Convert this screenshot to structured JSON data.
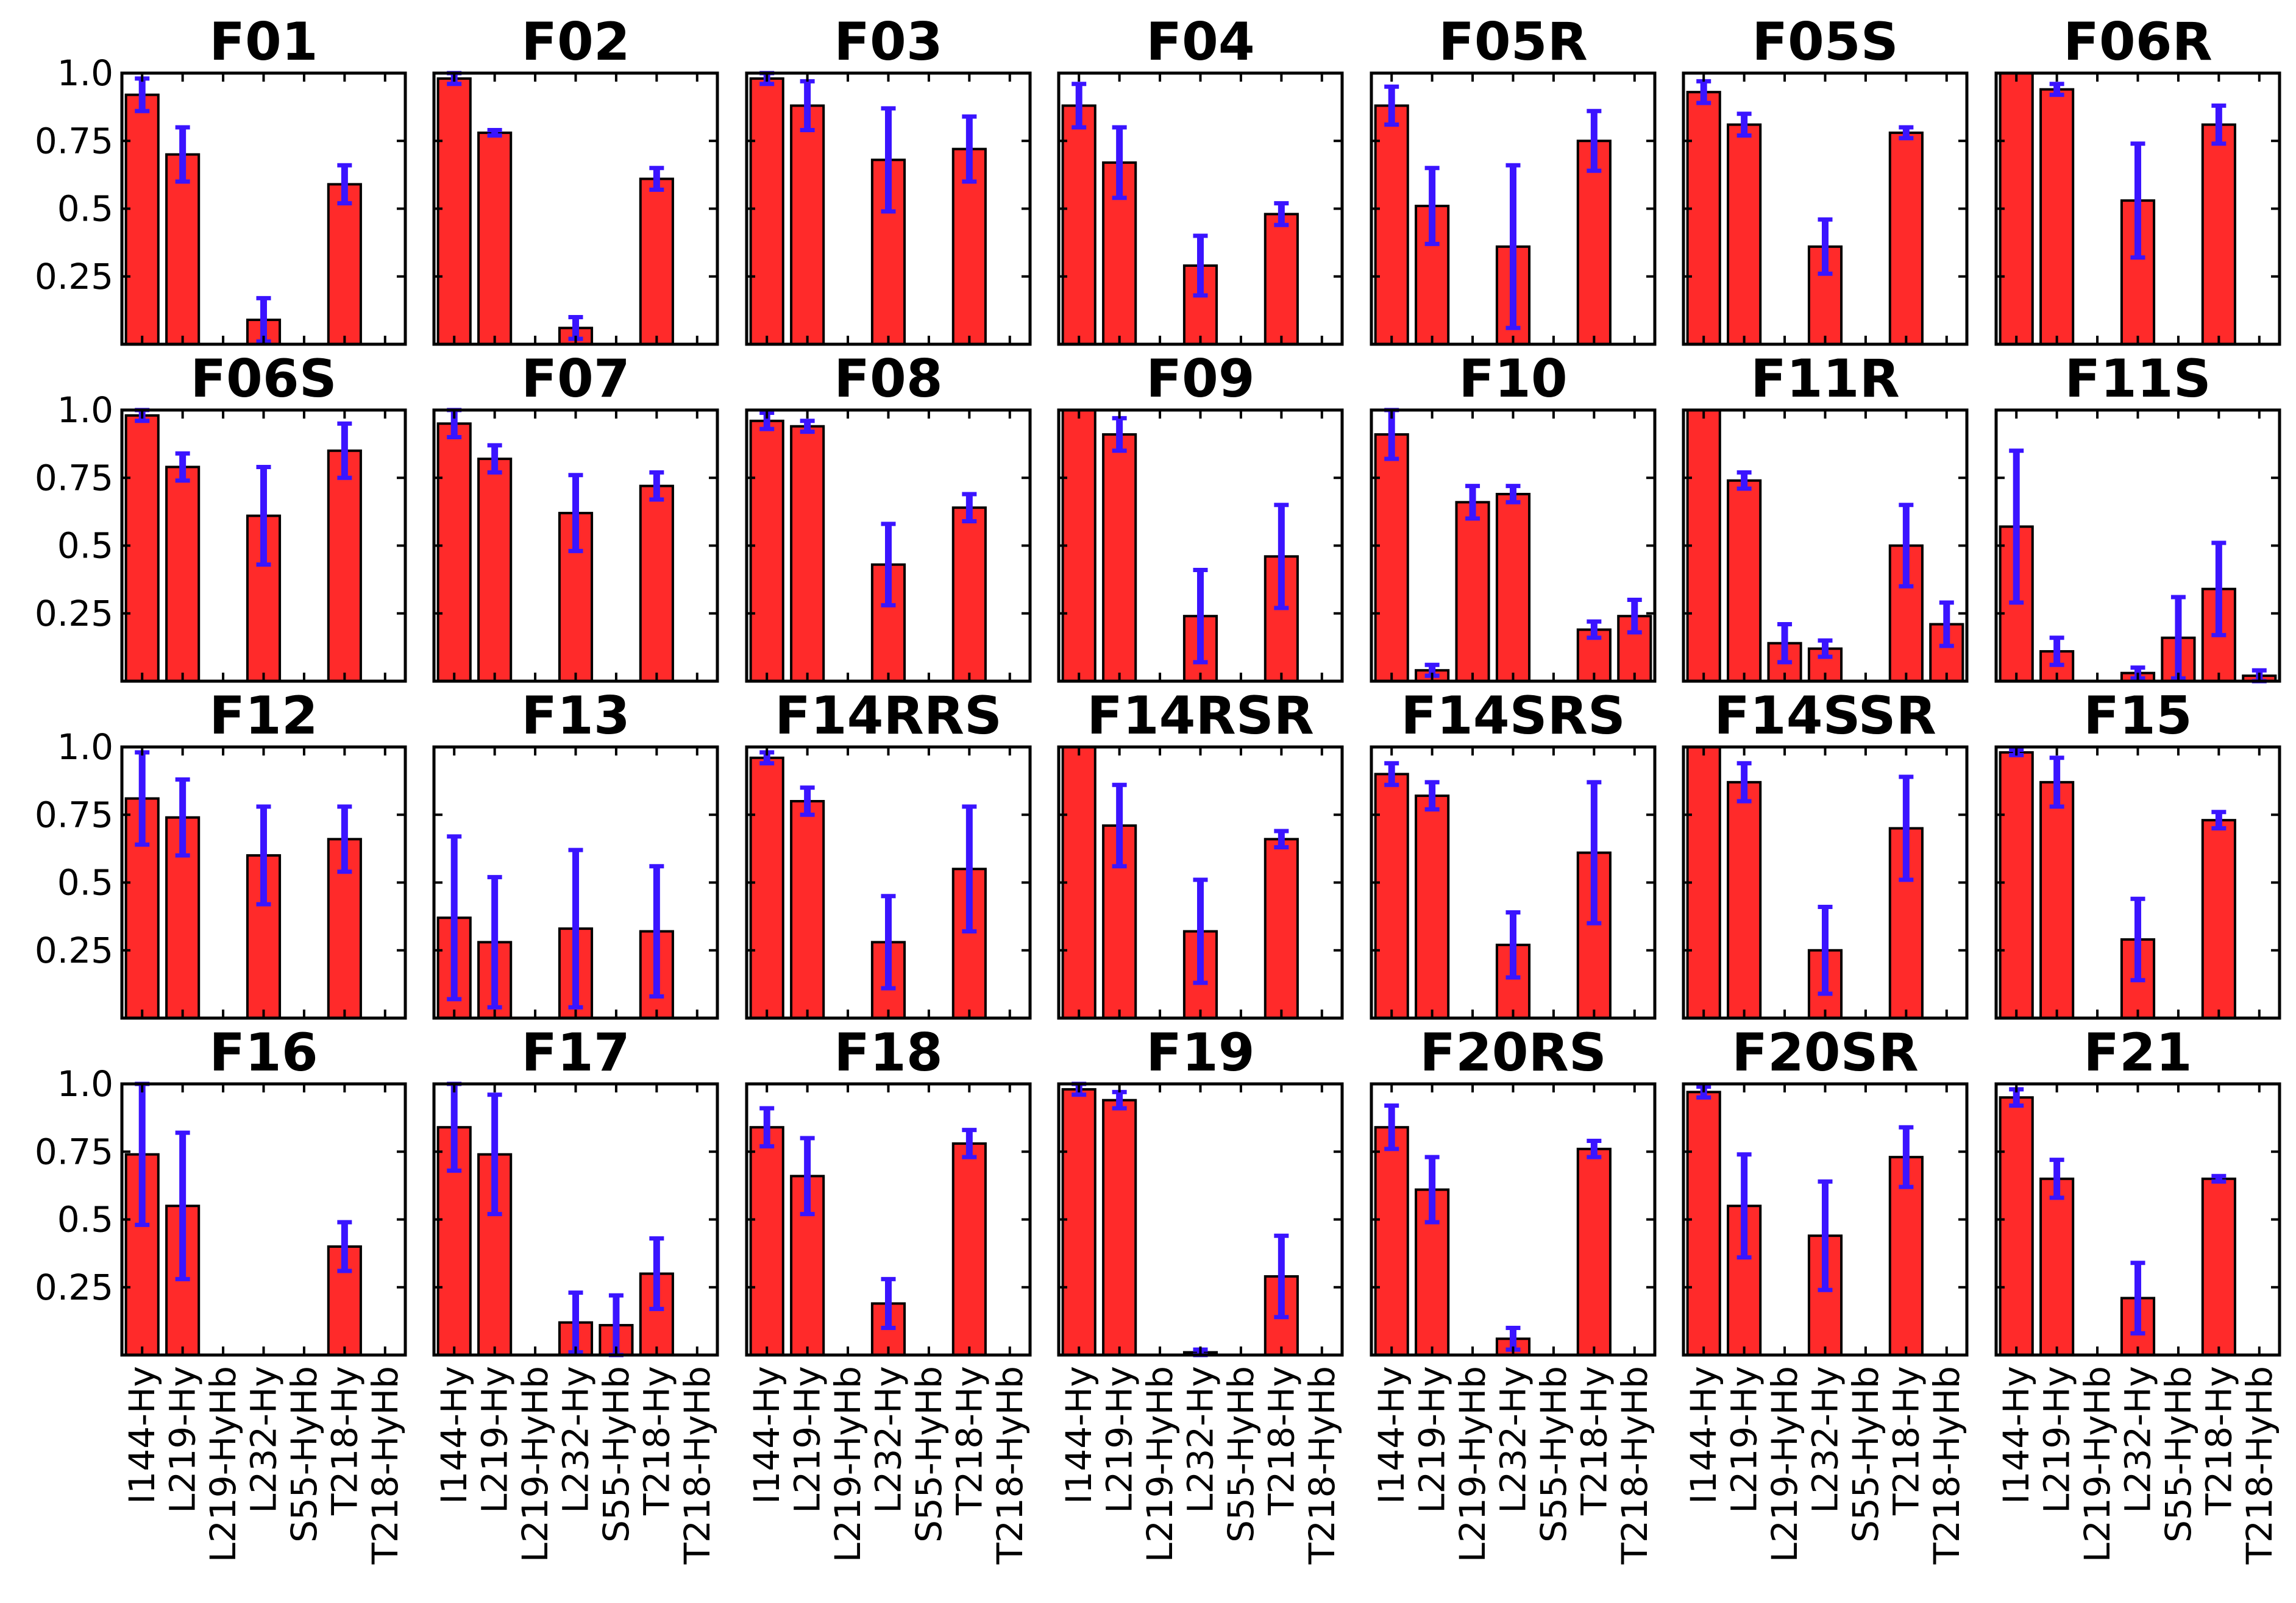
{
  "chart_data": {
    "type": "bar",
    "title": "",
    "xlabel": "",
    "ylabel": "",
    "ylim": [
      0,
      1.0
    ],
    "yticks": [
      0.25,
      0.5,
      0.75,
      1.0
    ],
    "ytick_labels": [
      "0.25",
      "0.5",
      "0.75",
      "1.0"
    ],
    "categories": [
      "I144-Hy",
      "L219-Hy",
      "L219-HyHb",
      "L232-Hy",
      "S55-HyHb",
      "T218-Hy",
      "T218-HyHb"
    ],
    "bar_color": "#ff2a2a",
    "error_color": "#3a14ff",
    "panels": [
      {
        "title": "F01",
        "values": [
          0.92,
          0.7,
          0,
          0.09,
          0,
          0.59,
          0
        ],
        "errors": [
          0.06,
          0.1,
          0,
          0.08,
          0,
          0.07,
          0
        ]
      },
      {
        "title": "F02",
        "values": [
          0.98,
          0.78,
          0,
          0.06,
          0,
          0.61,
          0
        ],
        "errors": [
          0.02,
          0.01,
          0,
          0.04,
          0,
          0.04,
          0
        ]
      },
      {
        "title": "F03",
        "values": [
          0.98,
          0.88,
          0,
          0.68,
          0,
          0.72,
          0
        ],
        "errors": [
          0.02,
          0.09,
          0,
          0.19,
          0,
          0.12,
          0
        ]
      },
      {
        "title": "F04",
        "values": [
          0.88,
          0.67,
          0,
          0.29,
          0,
          0.48,
          0
        ],
        "errors": [
          0.08,
          0.13,
          0,
          0.11,
          0,
          0.04,
          0
        ]
      },
      {
        "title": "F05R",
        "values": [
          0.88,
          0.51,
          0,
          0.36,
          0,
          0.75,
          0
        ],
        "errors": [
          0.07,
          0.14,
          0,
          0.3,
          0,
          0.11,
          0
        ]
      },
      {
        "title": "F05S",
        "values": [
          0.93,
          0.81,
          0,
          0.36,
          0,
          0.78,
          0
        ],
        "errors": [
          0.04,
          0.04,
          0,
          0.1,
          0,
          0.02,
          0
        ]
      },
      {
        "title": "F06R",
        "values": [
          1.0,
          0.94,
          0,
          0.53,
          0,
          0.81,
          0
        ],
        "errors": [
          0.0,
          0.02,
          0,
          0.21,
          0,
          0.07,
          0
        ]
      },
      {
        "title": "F06S",
        "values": [
          0.98,
          0.79,
          0,
          0.61,
          0,
          0.85,
          0
        ],
        "errors": [
          0.02,
          0.05,
          0,
          0.18,
          0,
          0.1,
          0
        ]
      },
      {
        "title": "F07",
        "values": [
          0.95,
          0.82,
          0,
          0.62,
          0,
          0.72,
          0
        ],
        "errors": [
          0.05,
          0.05,
          0,
          0.14,
          0,
          0.05,
          0
        ]
      },
      {
        "title": "F08",
        "values": [
          0.96,
          0.94,
          0,
          0.43,
          0,
          0.64,
          0
        ],
        "errors": [
          0.03,
          0.02,
          0,
          0.15,
          0,
          0.05,
          0
        ]
      },
      {
        "title": "F09",
        "values": [
          1.0,
          0.91,
          0,
          0.24,
          0,
          0.46,
          0
        ],
        "errors": [
          0.0,
          0.06,
          0,
          0.17,
          0,
          0.19,
          0
        ]
      },
      {
        "title": "F10",
        "values": [
          0.91,
          0.04,
          0.66,
          0.69,
          0,
          0.19,
          0.24
        ],
        "errors": [
          0.09,
          0.02,
          0.06,
          0.03,
          0,
          0.03,
          0.06
        ]
      },
      {
        "title": "F11R",
        "values": [
          1.0,
          0.74,
          0.14,
          0.12,
          0,
          0.5,
          0.21
        ],
        "errors": [
          0.0,
          0.03,
          0.07,
          0.03,
          0,
          0.15,
          0.08
        ]
      },
      {
        "title": "F11S",
        "values": [
          0.57,
          0.11,
          0.0,
          0.03,
          0.16,
          0.34,
          0.02
        ],
        "errors": [
          0.28,
          0.05,
          0.0,
          0.02,
          0.15,
          0.17,
          0.02
        ]
      },
      {
        "title": "F12",
        "values": [
          0.81,
          0.74,
          0,
          0.6,
          0,
          0.66,
          0
        ],
        "errors": [
          0.17,
          0.14,
          0,
          0.18,
          0,
          0.12,
          0
        ]
      },
      {
        "title": "F13",
        "values": [
          0.37,
          0.28,
          0,
          0.33,
          0,
          0.32,
          0
        ],
        "errors": [
          0.3,
          0.24,
          0,
          0.29,
          0,
          0.24,
          0
        ]
      },
      {
        "title": "F14RRS",
        "values": [
          0.96,
          0.8,
          0,
          0.28,
          0,
          0.55,
          0
        ],
        "errors": [
          0.02,
          0.05,
          0,
          0.17,
          0,
          0.23,
          0
        ]
      },
      {
        "title": "F14RSR",
        "values": [
          1.0,
          0.71,
          0,
          0.32,
          0,
          0.66,
          0
        ],
        "errors": [
          0.0,
          0.15,
          0,
          0.19,
          0,
          0.03,
          0
        ]
      },
      {
        "title": "F14SRS",
        "values": [
          0.9,
          0.82,
          0,
          0.27,
          0,
          0.61,
          0
        ],
        "errors": [
          0.04,
          0.05,
          0,
          0.12,
          0,
          0.26,
          0
        ]
      },
      {
        "title": "F14SSR",
        "values": [
          1.0,
          0.87,
          0,
          0.25,
          0,
          0.7,
          0
        ],
        "errors": [
          0.0,
          0.07,
          0,
          0.16,
          0,
          0.19,
          0
        ]
      },
      {
        "title": "F15",
        "values": [
          0.98,
          0.87,
          0,
          0.29,
          0,
          0.73,
          0
        ],
        "errors": [
          0.01,
          0.09,
          0,
          0.15,
          0,
          0.03,
          0
        ]
      },
      {
        "title": "F16",
        "values": [
          0.74,
          0.55,
          0,
          0,
          0,
          0.4,
          0
        ],
        "errors": [
          0.26,
          0.27,
          0,
          0,
          0,
          0.09,
          0
        ]
      },
      {
        "title": "F17",
        "values": [
          0.84,
          0.74,
          0,
          0.12,
          0.11,
          0.3,
          0
        ],
        "errors": [
          0.16,
          0.22,
          0,
          0.11,
          0.11,
          0.13,
          0
        ]
      },
      {
        "title": "F18",
        "values": [
          0.84,
          0.66,
          0,
          0.19,
          0,
          0.78,
          0
        ],
        "errors": [
          0.07,
          0.14,
          0,
          0.09,
          0,
          0.05,
          0
        ]
      },
      {
        "title": "F19",
        "values": [
          0.98,
          0.94,
          0,
          0.01,
          0,
          0.29,
          0
        ],
        "errors": [
          0.02,
          0.03,
          0,
          0.01,
          0,
          0.15,
          0
        ]
      },
      {
        "title": "F20RS",
        "values": [
          0.84,
          0.61,
          0,
          0.06,
          0,
          0.76,
          0
        ],
        "errors": [
          0.08,
          0.12,
          0,
          0.04,
          0,
          0.03,
          0
        ]
      },
      {
        "title": "F20SR",
        "values": [
          0.97,
          0.55,
          0,
          0.44,
          0,
          0.73,
          0
        ],
        "errors": [
          0.02,
          0.19,
          0,
          0.2,
          0,
          0.11,
          0
        ]
      },
      {
        "title": "F21",
        "values": [
          0.95,
          0.65,
          0,
          0.21,
          0,
          0.65,
          0
        ],
        "errors": [
          0.03,
          0.07,
          0,
          0.13,
          0,
          0.01,
          0
        ]
      }
    ]
  }
}
